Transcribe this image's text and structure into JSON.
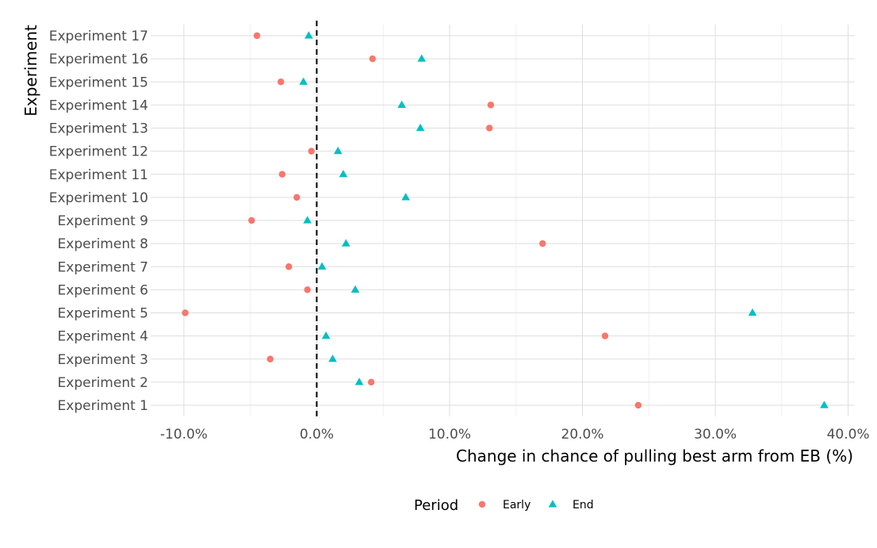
{
  "chart_data": {
    "type": "scatter",
    "xlabel": "Change in chance of pulling best arm from EB (%)",
    "ylabel": "Experiment",
    "xlim": [
      -12.5,
      40.5
    ],
    "x_ticks": [
      -10,
      0,
      10,
      20,
      30,
      40
    ],
    "x_tick_labels": [
      "-10.0%",
      "0.0%",
      "10.0%",
      "20.0%",
      "30.0%",
      "40.0%"
    ],
    "reference_line": {
      "x": 0,
      "style": "dashed"
    },
    "categories": [
      "Experiment 1",
      "Experiment 2",
      "Experiment 3",
      "Experiment 4",
      "Experiment 5",
      "Experiment 6",
      "Experiment 7",
      "Experiment 8",
      "Experiment 9",
      "Experiment 10",
      "Experiment 11",
      "Experiment 12",
      "Experiment 13",
      "Experiment 14",
      "Experiment 15",
      "Experiment 16",
      "Experiment 17"
    ],
    "series": [
      {
        "name": "Early",
        "marker": "circle",
        "color": "#F8766D",
        "values": [
          24.2,
          4.1,
          -3.5,
          21.7,
          -9.9,
          -0.7,
          -2.1,
          17.0,
          -4.9,
          -1.5,
          -2.6,
          -0.4,
          13.0,
          13.1,
          -2.7,
          4.2,
          -4.5
        ]
      },
      {
        "name": "End",
        "marker": "triangle",
        "color": "#00BFC4",
        "values": [
          38.2,
          3.2,
          1.2,
          0.7,
          32.8,
          2.9,
          0.4,
          2.2,
          -0.7,
          6.7,
          2.0,
          1.6,
          7.8,
          6.4,
          -1.0,
          7.9,
          -0.6
        ]
      }
    ],
    "grid": true,
    "legend": {
      "title": "Period",
      "position": "bottom",
      "entries": [
        "Early",
        "End"
      ]
    }
  }
}
